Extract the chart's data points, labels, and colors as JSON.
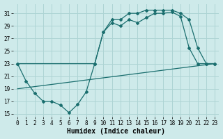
{
  "title": "",
  "xlabel": "Humidex (Indice chaleur)",
  "ylabel": "",
  "bg_color": "#ceeaea",
  "grid_color": "#add4d4",
  "line_color": "#1a6e6e",
  "x_ticks": [
    0,
    1,
    2,
    3,
    4,
    5,
    6,
    7,
    8,
    9,
    10,
    11,
    12,
    13,
    14,
    15,
    16,
    17,
    18,
    19,
    20,
    21,
    22,
    23
  ],
  "ylim": [
    14.5,
    32.5
  ],
  "xlim": [
    -0.5,
    23.5
  ],
  "yticks": [
    15,
    17,
    19,
    21,
    23,
    25,
    27,
    29,
    31
  ],
  "line1_x": [
    0,
    1,
    2,
    3,
    4,
    5,
    6,
    7,
    8,
    9,
    10,
    11,
    12,
    13,
    14,
    15,
    16,
    17,
    18,
    19,
    20,
    21,
    22,
    23
  ],
  "line1_y": [
    23.0,
    20.2,
    18.3,
    17.0,
    17.0,
    16.4,
    15.2,
    16.5,
    18.5,
    23.0,
    28.0,
    29.5,
    29.0,
    30.0,
    29.5,
    30.3,
    31.0,
    31.0,
    31.2,
    30.5,
    25.5,
    23.0,
    23.0,
    23.0
  ],
  "line2_x": [
    0,
    9,
    10,
    11,
    12,
    13,
    14,
    15,
    16,
    17,
    18,
    19,
    20,
    21,
    22,
    23
  ],
  "line2_y": [
    23.0,
    23.0,
    28.0,
    30.0,
    30.0,
    31.0,
    31.0,
    31.5,
    31.5,
    31.5,
    31.5,
    31.0,
    30.0,
    25.5,
    23.0,
    23.0
  ],
  "line3_x": [
    0,
    23
  ],
  "line3_y": [
    19.0,
    23.0
  ],
  "marker_style": "D",
  "marker_size": 2.0,
  "line_width": 0.9,
  "xlabel_fontsize": 7,
  "tick_fontsize": 5.5
}
